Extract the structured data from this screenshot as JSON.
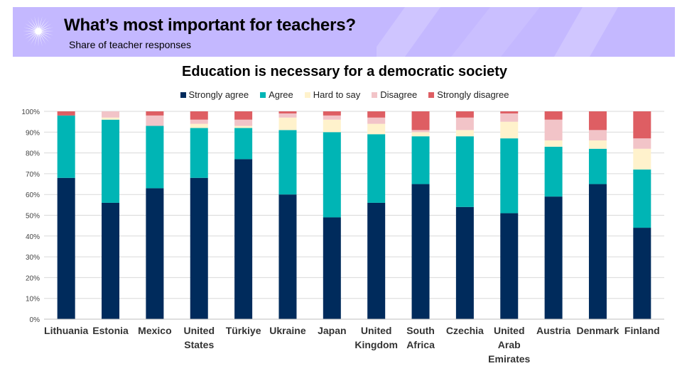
{
  "header": {
    "title": "What’s most important for teachers?",
    "subtitle": "Share of teacher responses",
    "logo_icon": "sunburst-logo-icon",
    "background": "#c4b8ff"
  },
  "chart_data": {
    "type": "bar",
    "stacked": true,
    "title": "Education is necessary for a democratic society",
    "xlabel": "",
    "ylabel": "",
    "ylim": [
      0,
      100
    ],
    "y_ticks": [
      "0%",
      "10%",
      "20%",
      "30%",
      "40%",
      "50%",
      "60%",
      "70%",
      "80%",
      "90%",
      "100%"
    ],
    "grid": true,
    "legend_position": "top",
    "categories": [
      [
        "Lithuania"
      ],
      [
        "Estonia"
      ],
      [
        "Mexico"
      ],
      [
        "United",
        "States"
      ],
      [
        "Türkiye"
      ],
      [
        "Ukraine"
      ],
      [
        "Japan"
      ],
      [
        "United",
        "Kingdom"
      ],
      [
        "South",
        "Africa"
      ],
      [
        "Czechia"
      ],
      [
        "United",
        "Arab",
        "Emirates"
      ],
      [
        "Austria"
      ],
      [
        "Denmark"
      ],
      [
        "Finland"
      ]
    ],
    "series": [
      {
        "name": "Strongly agree",
        "color": "#002b5c",
        "values": [
          68,
          56,
          63,
          68,
          77,
          60,
          49,
          56,
          65,
          54,
          51,
          59,
          65,
          44
        ]
      },
      {
        "name": "Agree",
        "color": "#00b5b5",
        "values": [
          30,
          40,
          30,
          24,
          15,
          31,
          41,
          33,
          23,
          34,
          36,
          24,
          17,
          28
        ]
      },
      {
        "name": "Hard to say",
        "color": "#fff2cc",
        "values": [
          0,
          1,
          0,
          2,
          1,
          6,
          6,
          5,
          2,
          3,
          8,
          3,
          4,
          10
        ]
      },
      {
        "name": "Disagree",
        "color": "#f2c4c8",
        "values": [
          0,
          3,
          5,
          2,
          3,
          2,
          2,
          3,
          1,
          6,
          4,
          10,
          5,
          5
        ]
      },
      {
        "name": "Strongly disagree",
        "color": "#de5e63",
        "values": [
          2,
          0,
          2,
          4,
          4,
          1,
          2,
          3,
          9,
          3,
          1,
          4,
          9,
          13
        ]
      }
    ]
  }
}
